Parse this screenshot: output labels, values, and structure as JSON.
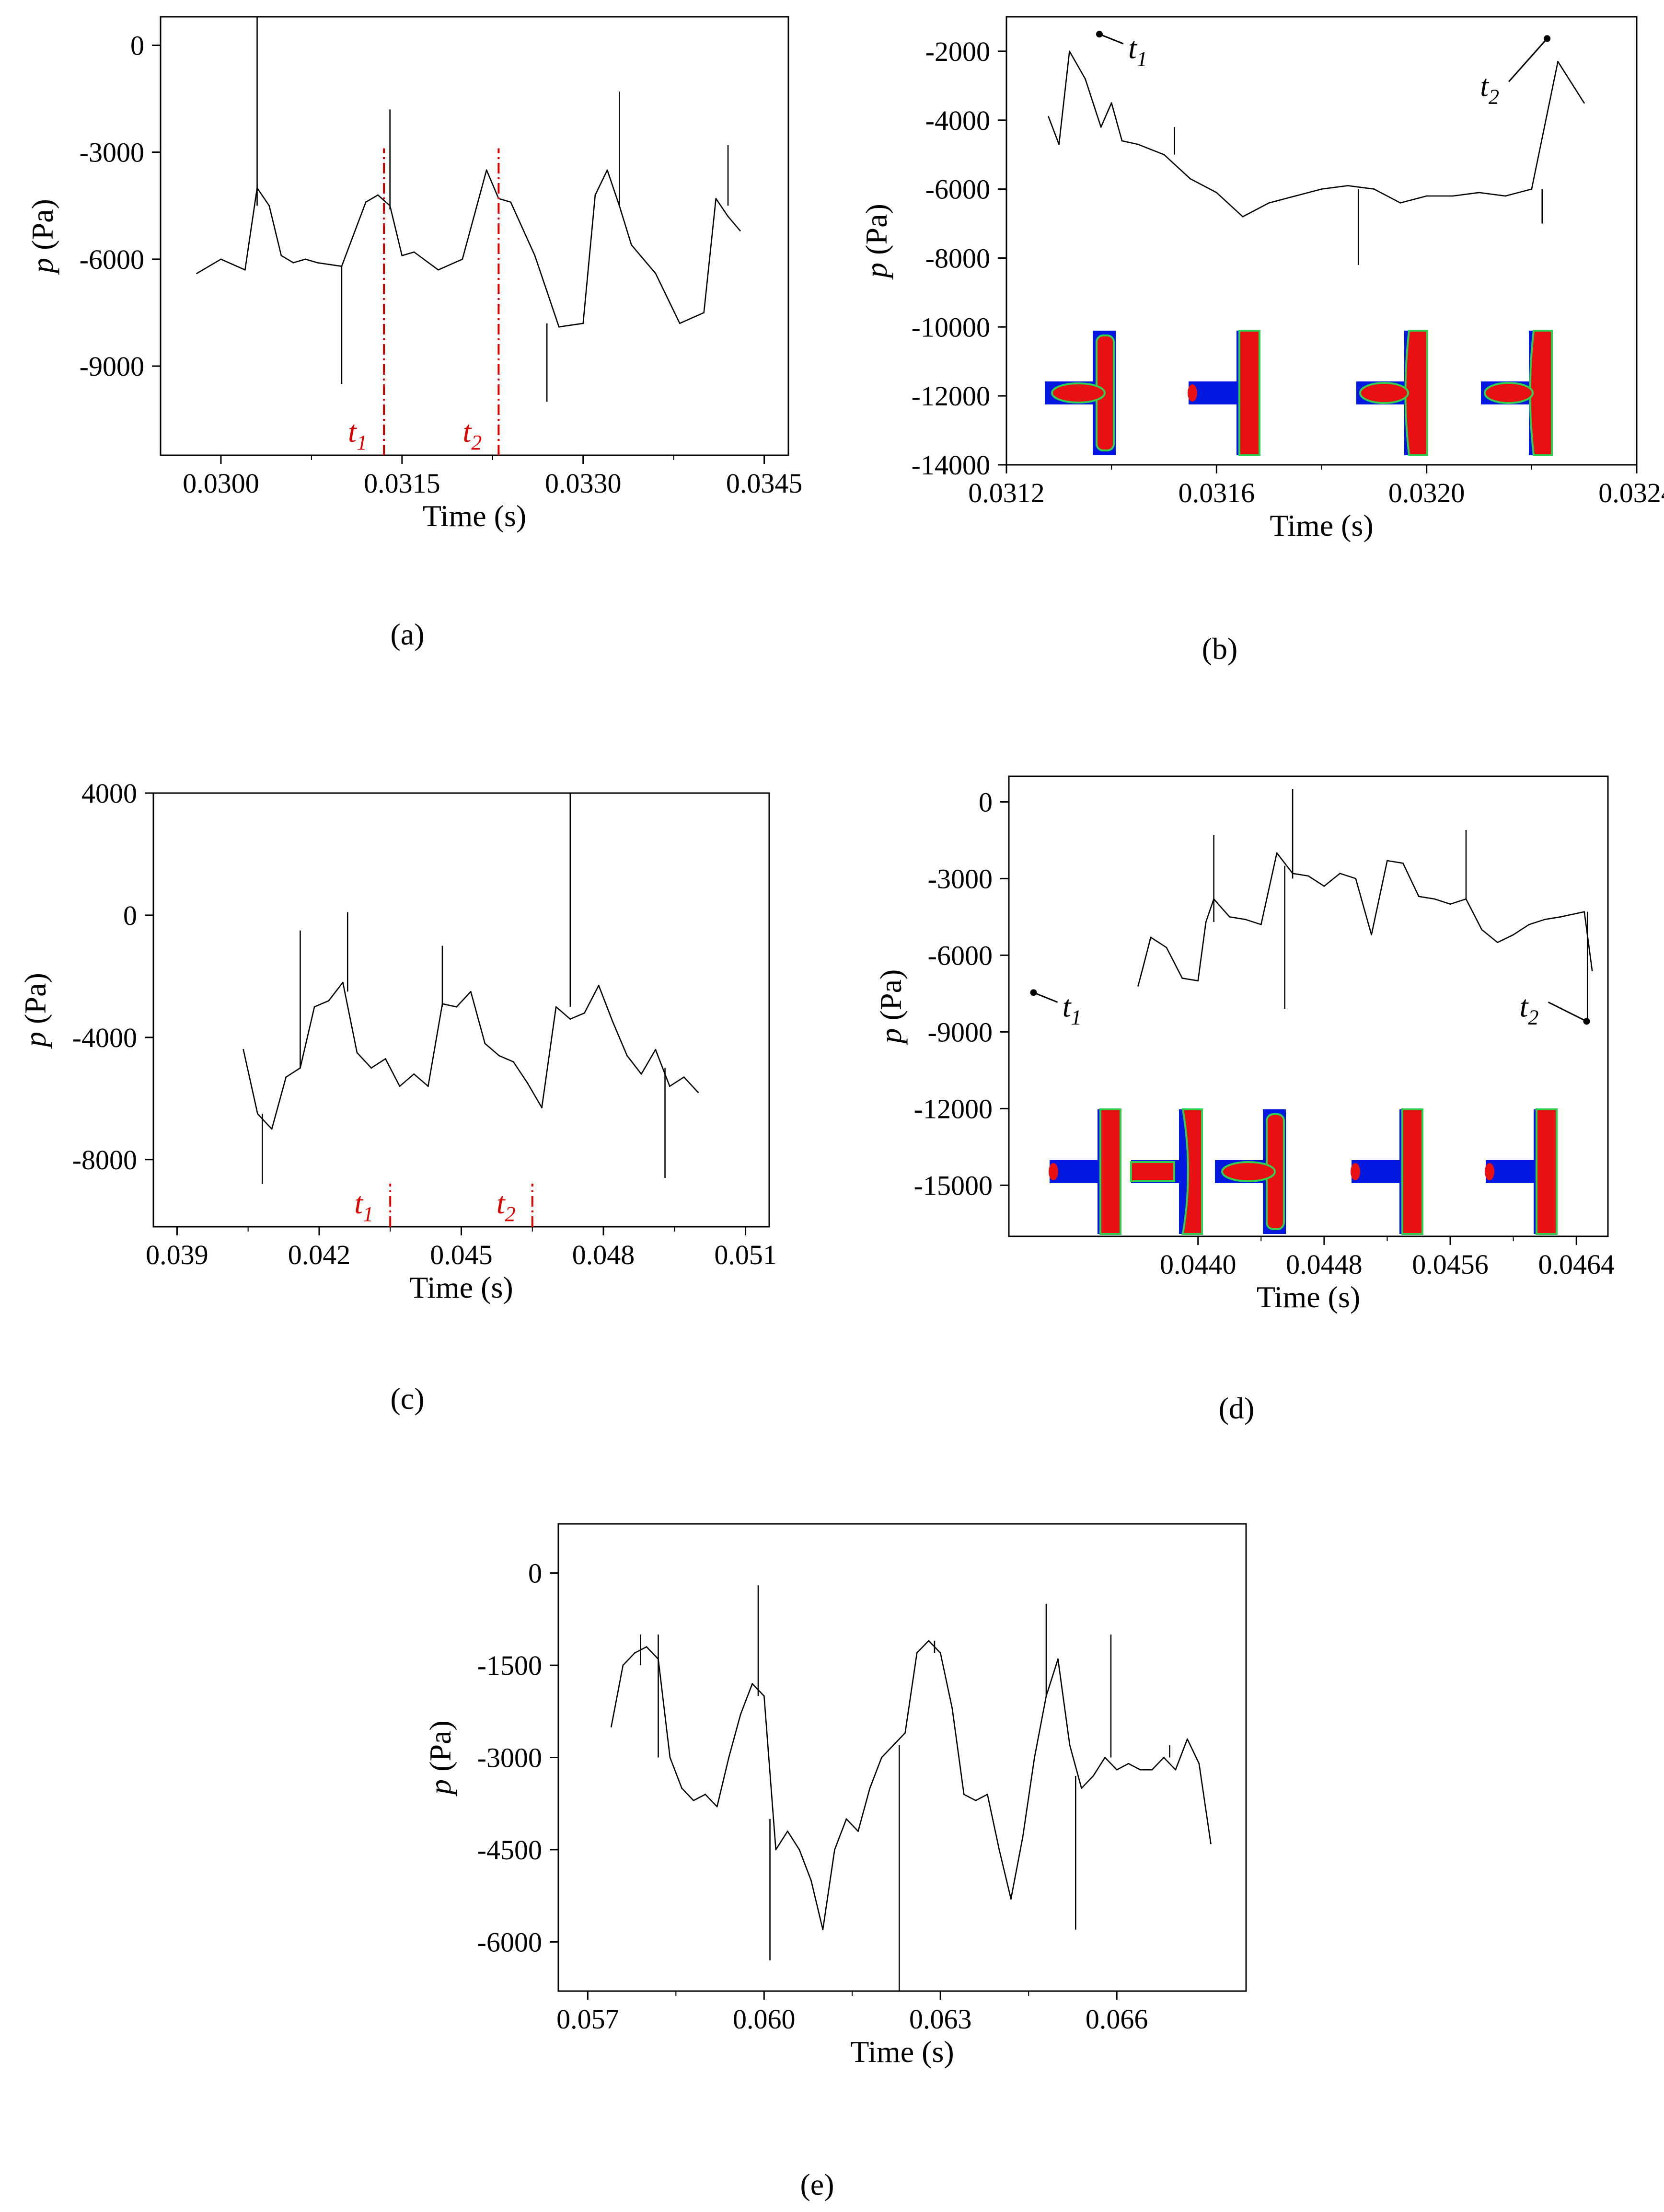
{
  "colors": {
    "line": "#000000",
    "marker": "#e00000",
    "phase_a": "#0018e0",
    "phase_b": "#e81010",
    "interface": "#30d050"
  },
  "chart_data": [
    {
      "id": "a",
      "type": "line",
      "panel_label": "(a)",
      "xlabel": "Time (s)",
      "ylabel_var": "p",
      "ylabel_unit": " (Pa)",
      "xlim": [
        0.0295,
        0.0347
      ],
      "ylim": [
        -11500,
        800
      ],
      "xticks": [
        0.03,
        0.0315,
        0.033,
        0.0345
      ],
      "xtick_labels": [
        "0.0300",
        "0.0315",
        "0.0330",
        "0.0345"
      ],
      "yticks": [
        0,
        -3000,
        -6000,
        -9000
      ],
      "ytick_labels": [
        "0",
        "-3000",
        "-6000",
        "-9000"
      ],
      "series": [
        {
          "name": "pressure",
          "x": [
            0.0298,
            0.03,
            0.0302,
            0.0303,
            0.0304,
            0.0305,
            0.0306,
            0.0307,
            0.0308,
            0.031,
            0.0312,
            0.0313,
            0.0314,
            0.0315,
            0.0316,
            0.0318,
            0.032,
            0.0322,
            0.0323,
            0.0324,
            0.0326,
            0.0328,
            0.033,
            0.0331,
            0.0332,
            0.0333,
            0.0334,
            0.0336,
            0.0338,
            0.034,
            0.0341,
            0.0342,
            0.0343
          ],
          "y": [
            -6400,
            -6000,
            -6300,
            -4000,
            -4500,
            -5900,
            -6100,
            -6000,
            -6100,
            -6200,
            -4400,
            -4200,
            -4500,
            -5900,
            -5800,
            -6300,
            -6000,
            -3500,
            -4300,
            -4400,
            -5900,
            -7900,
            -7800,
            -4200,
            -3500,
            -4500,
            -5600,
            -6400,
            -7800,
            -7500,
            -4300,
            -4800,
            -5200
          ]
        }
      ],
      "spikes": [
        {
          "x": 0.0303,
          "y_from": -4500,
          "y_to": 800
        },
        {
          "x": 0.0314,
          "y_from": -4600,
          "y_to": -1800
        },
        {
          "x": 0.031,
          "y_from": -6200,
          "y_to": -9500
        },
        {
          "x": 0.0333,
          "y_from": -4500,
          "y_to": -1300
        },
        {
          "x": 0.0327,
          "y_from": -7800,
          "y_to": -10000
        },
        {
          "x": 0.0342,
          "y_from": -4500,
          "y_to": -2800
        }
      ],
      "markers": [
        {
          "label": "t",
          "sub": "1",
          "x": 0.03135
        },
        {
          "label": "t",
          "sub": "2",
          "x": 0.0323
        }
      ]
    },
    {
      "id": "b",
      "type": "line",
      "panel_label": "(b)",
      "xlabel": "Time (s)",
      "ylabel_var": "p",
      "ylabel_unit": " (Pa)",
      "xlim": [
        0.0312,
        0.0324
      ],
      "ylim": [
        -14000,
        -1000
      ],
      "xticks": [
        0.0312,
        0.0316,
        0.032,
        0.0324
      ],
      "xtick_labels": [
        "0.0312",
        "0.0316",
        "0.0320",
        "0.0324"
      ],
      "yticks": [
        -2000,
        -4000,
        -6000,
        -8000,
        -10000,
        -12000,
        -14000
      ],
      "ytick_labels": [
        "-2000",
        "-4000",
        "-6000",
        "-8000",
        "-10000",
        "-12000",
        "-14000"
      ],
      "series": [
        {
          "name": "pressure",
          "x": [
            0.03128,
            0.0313,
            0.03132,
            0.03135,
            0.03138,
            0.0314,
            0.03142,
            0.03145,
            0.0315,
            0.03155,
            0.0316,
            0.03165,
            0.0317,
            0.03175,
            0.0318,
            0.03185,
            0.0319,
            0.03195,
            0.032,
            0.03205,
            0.0321,
            0.03215,
            0.0322,
            0.03225,
            0.0323
          ],
          "y": [
            -3900,
            -4700,
            -2000,
            -2800,
            -4200,
            -3500,
            -4600,
            -4700,
            -5000,
            -5700,
            -6100,
            -6800,
            -6400,
            -6200,
            -6000,
            -5900,
            -6000,
            -6400,
            -6200,
            -6200,
            -6100,
            -6200,
            -6000,
            -2300,
            -3500
          ]
        }
      ],
      "spikes": [
        {
          "x": 0.03152,
          "y_from": -5000,
          "y_to": -4200
        },
        {
          "x": 0.03187,
          "y_from": -6000,
          "y_to": -8200
        },
        {
          "x": 0.03222,
          "y_from": -6000,
          "y_to": -7000
        }
      ],
      "annotations": [
        {
          "label": "t",
          "sub": "1",
          "x": 0.03145,
          "y": -2200
        },
        {
          "label": "t",
          "sub": "2",
          "x": 0.03212,
          "y": -3300
        }
      ],
      "insets": [
        {
          "kind": "entering"
        },
        {
          "kind": "filled"
        },
        {
          "kind": "plug"
        },
        {
          "kind": "plug"
        }
      ]
    },
    {
      "id": "c",
      "type": "line",
      "panel_label": "(c)",
      "xlabel": "Time (s)",
      "ylabel_var": "p",
      "ylabel_unit": " (Pa)",
      "xlim": [
        0.0385,
        0.0515
      ],
      "ylim": [
        -10200,
        4000
      ],
      "xticks": [
        0.039,
        0.042,
        0.045,
        0.048,
        0.051
      ],
      "xtick_labels": [
        "0.039",
        "0.042",
        "0.045",
        "0.048",
        "0.051"
      ],
      "yticks": [
        4000,
        0,
        -4000,
        -8000
      ],
      "ytick_labels": [
        "4000",
        "0",
        "-4000",
        "-8000"
      ],
      "series": [
        {
          "name": "pressure",
          "x": [
            0.0404,
            0.0407,
            0.041,
            0.0413,
            0.0416,
            0.0419,
            0.0422,
            0.0425,
            0.0428,
            0.0431,
            0.0434,
            0.0437,
            0.044,
            0.0443,
            0.0446,
            0.0449,
            0.0452,
            0.0455,
            0.0458,
            0.0461,
            0.0464,
            0.0467,
            0.047,
            0.0473,
            0.0476,
            0.0479,
            0.0482,
            0.0485,
            0.0488,
            0.0491,
            0.0494,
            0.0497,
            0.05
          ],
          "y": [
            -4400,
            -6500,
            -7000,
            -5300,
            -5000,
            -3000,
            -2800,
            -2200,
            -4500,
            -5000,
            -4700,
            -5600,
            -5200,
            -5600,
            -2900,
            -3000,
            -2500,
            -4200,
            -4600,
            -4800,
            -5500,
            -6300,
            -3000,
            -3400,
            -3200,
            -2300,
            -3500,
            -4600,
            -5200,
            -4400,
            -5600,
            -5300,
            -5800
          ]
        }
      ],
      "spikes": [
        {
          "x": 0.0416,
          "y_from": -5000,
          "y_to": -500
        },
        {
          "x": 0.0426,
          "y_from": -2500,
          "y_to": 100
        },
        {
          "x": 0.0446,
          "y_from": -3000,
          "y_to": -1000
        },
        {
          "x": 0.0473,
          "y_from": -3000,
          "y_to": 4000
        },
        {
          "x": 0.0408,
          "y_from": -6500,
          "y_to": -8800
        },
        {
          "x": 0.0493,
          "y_from": -5000,
          "y_to": -8600
        }
      ],
      "markers": [
        {
          "label": "t",
          "sub": "1",
          "x": 0.0435
        },
        {
          "label": "t",
          "sub": "2",
          "x": 0.0465
        }
      ]
    },
    {
      "id": "d",
      "type": "line",
      "panel_label": "(d)",
      "xlabel": "Time (s)",
      "ylabel_var": "p",
      "ylabel_unit": " (Pa)",
      "xlim": [
        0.0428,
        0.0466
      ],
      "ylim": [
        -17000,
        1000
      ],
      "xticks": [
        0.044,
        0.0448,
        0.0456,
        0.0464
      ],
      "xtick_labels": [
        "0.0440",
        "0.0448",
        "0.0456",
        "0.0464"
      ],
      "yticks": [
        0,
        -3000,
        -6000,
        -9000,
        -12000,
        -15000
      ],
      "ytick_labels": [
        "0",
        "-3000",
        "-6000",
        "-9000",
        "-12000",
        "-15000"
      ],
      "series": [
        {
          "name": "pressure",
          "x": [
            0.04362,
            0.04365,
            0.0437,
            0.0438,
            0.0439,
            0.044,
            0.04405,
            0.0441,
            0.0442,
            0.0443,
            0.0444,
            0.0445,
            0.0446,
            0.0447,
            0.0448,
            0.0449,
            0.045,
            0.0451,
            0.0452,
            0.0453,
            0.0454,
            0.0455,
            0.0456,
            0.0457,
            0.0458,
            0.0459,
            0.046,
            0.0461,
            0.0462,
            0.0463,
            0.04645,
            0.0465
          ],
          "y": [
            -7200,
            -6500,
            -5300,
            -5700,
            -6900,
            -7000,
            -4700,
            -3800,
            -4500,
            -4600,
            -4800,
            -2000,
            -2800,
            -2900,
            -3300,
            -2800,
            -3000,
            -5200,
            -2300,
            -2400,
            -3700,
            -3800,
            -4000,
            -3800,
            -5000,
            -5500,
            -5200,
            -4800,
            -4600,
            -4500,
            -4300,
            -6600
          ]
        }
      ],
      "spikes": [
        {
          "x": 0.0441,
          "y_from": -4700,
          "y_to": -1300
        },
        {
          "x": 0.0446,
          "y_from": -3000,
          "y_to": 500
        },
        {
          "x": 0.04455,
          "y_from": -2500,
          "y_to": -8100
        },
        {
          "x": 0.0457,
          "y_from": -3800,
          "y_to": -1100
        },
        {
          "x": 0.04647,
          "y_from": -4300,
          "y_to": -8500
        }
      ],
      "annotations": [
        {
          "label": "t",
          "sub": "1",
          "x": 0.0432,
          "y": -8400
        },
        {
          "label": "t",
          "sub": "2",
          "x": 0.0461,
          "y": -8400
        }
      ],
      "insets": [
        {
          "kind": "filled"
        },
        {
          "kind": "drain"
        },
        {
          "kind": "entering"
        },
        {
          "kind": "filled"
        },
        {
          "kind": "filled"
        }
      ]
    },
    {
      "id": "e",
      "type": "line",
      "panel_label": "(e)",
      "xlabel": "Time (s)",
      "ylabel_var": "p",
      "ylabel_unit": " (Pa)",
      "xlim": [
        0.0565,
        0.0682
      ],
      "ylim": [
        -6800,
        800
      ],
      "xticks": [
        0.057,
        0.06,
        0.063,
        0.066
      ],
      "xtick_labels": [
        "0.057",
        "0.060",
        "0.063",
        "0.066"
      ],
      "yticks": [
        0,
        -1500,
        -3000,
        -4500,
        -6000
      ],
      "ytick_labels": [
        "0",
        "-1500",
        "-3000",
        "-4500",
        "-6000"
      ],
      "series": [
        {
          "name": "pressure",
          "x": [
            0.0574,
            0.0576,
            0.0578,
            0.058,
            0.0582,
            0.0584,
            0.0586,
            0.0588,
            0.059,
            0.0592,
            0.0594,
            0.0596,
            0.0598,
            0.06,
            0.0602,
            0.0604,
            0.0606,
            0.0608,
            0.061,
            0.0612,
            0.0614,
            0.0616,
            0.0618,
            0.062,
            0.0622,
            0.0624,
            0.0626,
            0.0628,
            0.063,
            0.0632,
            0.0634,
            0.0636,
            0.0638,
            0.064,
            0.0642,
            0.0644,
            0.0646,
            0.0648,
            0.065,
            0.0652,
            0.0654,
            0.0656,
            0.0658,
            0.066,
            0.0662,
            0.0664,
            0.0666,
            0.0668,
            0.067,
            0.0672,
            0.0674,
            0.0676
          ],
          "y": [
            -2500,
            -1500,
            -1300,
            -1200,
            -1400,
            -3000,
            -3500,
            -3700,
            -3600,
            -3800,
            -3000,
            -2300,
            -1800,
            -2000,
            -4500,
            -4200,
            -4500,
            -5000,
            -5800,
            -4500,
            -4000,
            -4200,
            -3500,
            -3000,
            -2800,
            -2600,
            -1300,
            -1100,
            -1300,
            -2200,
            -3600,
            -3700,
            -3600,
            -4500,
            -5300,
            -4300,
            -3000,
            -2000,
            -1400,
            -2800,
            -3500,
            -3300,
            -3000,
            -3200,
            -3100,
            -3200,
            -3200,
            -3000,
            -3200,
            -2700,
            -3100,
            -4400
          ]
        }
      ],
      "spikes": [
        {
          "x": 0.0579,
          "y_from": -1500,
          "y_to": -1000
        },
        {
          "x": 0.0582,
          "y_from": -3000,
          "y_to": -1000
        },
        {
          "x": 0.0599,
          "y_from": -2000,
          "y_to": -200
        },
        {
          "x": 0.0601,
          "y_from": -4000,
          "y_to": -6300
        },
        {
          "x": 0.0623,
          "y_from": -2800,
          "y_to": -6800
        },
        {
          "x": 0.0629,
          "y_from": -1300,
          "y_to": -1100
        },
        {
          "x": 0.0648,
          "y_from": -2000,
          "y_to": -500
        },
        {
          "x": 0.0659,
          "y_from": -3000,
          "y_to": -1000
        },
        {
          "x": 0.0653,
          "y_from": -3300,
          "y_to": -5800
        },
        {
          "x": 0.0669,
          "y_from": -3000,
          "y_to": -2800
        }
      ]
    }
  ]
}
